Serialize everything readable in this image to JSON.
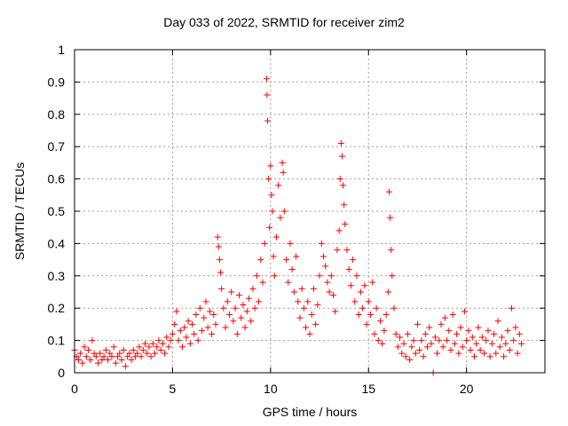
{
  "chart_data": {
    "type": "scatter",
    "title": "Day 033 of 2022, SRMTID for receiver zim2",
    "xlabel": "GPS time / hours",
    "ylabel": "SRMTID / TECUs",
    "xlim": [
      0,
      24
    ],
    "ylim": [
      0,
      1
    ],
    "xticks": [
      0,
      5,
      10,
      15,
      20
    ],
    "xtick_labels": [
      "0",
      "5",
      "10",
      "15",
      "20"
    ],
    "yticks": [
      0,
      0.1,
      0.2,
      0.3,
      0.4,
      0.5,
      0.6,
      0.7,
      0.8,
      0.9,
      1
    ],
    "ytick_labels": [
      "0",
      "0.1",
      "0.2",
      "0.3",
      "0.4",
      "0.5",
      "0.6",
      "0.7",
      "0.8",
      "0.9",
      "1"
    ],
    "grid": true,
    "marker": "+",
    "color": "#ff0000",
    "series": [
      {
        "name": "SRMTID",
        "points": [
          [
            0.0,
            0.07
          ],
          [
            0.1,
            0.05
          ],
          [
            0.2,
            0.04
          ],
          [
            0.3,
            0.06
          ],
          [
            0.4,
            0.03
          ],
          [
            0.5,
            0.08
          ],
          [
            0.6,
            0.05
          ],
          [
            0.7,
            0.07
          ],
          [
            0.8,
            0.04
          ],
          [
            0.9,
            0.1
          ],
          [
            1.0,
            0.06
          ],
          [
            1.1,
            0.05
          ],
          [
            1.2,
            0.03
          ],
          [
            1.3,
            0.06
          ],
          [
            1.4,
            0.04
          ],
          [
            1.5,
            0.05
          ],
          [
            1.6,
            0.07
          ],
          [
            1.7,
            0.04
          ],
          [
            1.8,
            0.06
          ],
          [
            1.9,
            0.05
          ],
          [
            2.0,
            0.08
          ],
          [
            2.1,
            0.03
          ],
          [
            2.2,
            0.05
          ],
          [
            2.3,
            0.06
          ],
          [
            2.4,
            0.04
          ],
          [
            2.5,
            0.07
          ],
          [
            2.6,
            0.02
          ],
          [
            2.7,
            0.05
          ],
          [
            2.8,
            0.06
          ],
          [
            2.9,
            0.04
          ],
          [
            3.0,
            0.07
          ],
          [
            3.1,
            0.05
          ],
          [
            3.2,
            0.06
          ],
          [
            3.3,
            0.08
          ],
          [
            3.4,
            0.05
          ],
          [
            3.5,
            0.07
          ],
          [
            3.6,
            0.09
          ],
          [
            3.7,
            0.06
          ],
          [
            3.8,
            0.08
          ],
          [
            3.9,
            0.05
          ],
          [
            4.0,
            0.09
          ],
          [
            4.1,
            0.06
          ],
          [
            4.2,
            0.08
          ],
          [
            4.3,
            0.1
          ],
          [
            4.4,
            0.07
          ],
          [
            4.5,
            0.09
          ],
          [
            4.6,
            0.06
          ],
          [
            4.7,
            0.11
          ],
          [
            4.8,
            0.08
          ],
          [
            4.9,
            0.1
          ],
          [
            5.0,
            0.12
          ],
          [
            5.1,
            0.15
          ],
          [
            5.2,
            0.19
          ],
          [
            5.3,
            0.1
          ],
          [
            5.4,
            0.13
          ],
          [
            5.5,
            0.08
          ],
          [
            5.6,
            0.14
          ],
          [
            5.7,
            0.11
          ],
          [
            5.8,
            0.16
          ],
          [
            5.9,
            0.09
          ],
          [
            6.0,
            0.15
          ],
          [
            6.1,
            0.12
          ],
          [
            6.2,
            0.18
          ],
          [
            6.3,
            0.1
          ],
          [
            6.4,
            0.2
          ],
          [
            6.5,
            0.13
          ],
          [
            6.6,
            0.17
          ],
          [
            6.7,
            0.22
          ],
          [
            6.8,
            0.14
          ],
          [
            6.9,
            0.19
          ],
          [
            7.0,
            0.12
          ],
          [
            7.1,
            0.18
          ],
          [
            7.2,
            0.15
          ],
          [
            7.3,
            0.42
          ],
          [
            7.35,
            0.39
          ],
          [
            7.4,
            0.35
          ],
          [
            7.45,
            0.31
          ],
          [
            7.5,
            0.26
          ],
          [
            7.6,
            0.2
          ],
          [
            7.7,
            0.14
          ],
          [
            7.8,
            0.22
          ],
          [
            7.9,
            0.18
          ],
          [
            8.0,
            0.25
          ],
          [
            8.1,
            0.16
          ],
          [
            8.2,
            0.2
          ],
          [
            8.3,
            0.12
          ],
          [
            8.4,
            0.24
          ],
          [
            8.5,
            0.17
          ],
          [
            8.6,
            0.21
          ],
          [
            8.7,
            0.14
          ],
          [
            8.8,
            0.19
          ],
          [
            8.9,
            0.23
          ],
          [
            9.0,
            0.16
          ],
          [
            9.1,
            0.26
          ],
          [
            9.2,
            0.2
          ],
          [
            9.3,
            0.3
          ],
          [
            9.4,
            0.22
          ],
          [
            9.5,
            0.35
          ],
          [
            9.6,
            0.28
          ],
          [
            9.7,
            0.4
          ],
          [
            9.8,
            0.91
          ],
          [
            9.82,
            0.86
          ],
          [
            9.85,
            0.78
          ],
          [
            9.9,
            0.6
          ],
          [
            9.95,
            0.45
          ],
          [
            10.0,
            0.64
          ],
          [
            10.05,
            0.55
          ],
          [
            10.1,
            0.5
          ],
          [
            10.15,
            0.36
          ],
          [
            10.2,
            0.3
          ],
          [
            10.3,
            0.42
          ],
          [
            10.4,
            0.58
          ],
          [
            10.5,
            0.48
          ],
          [
            10.6,
            0.65
          ],
          [
            10.65,
            0.62
          ],
          [
            10.7,
            0.5
          ],
          [
            10.8,
            0.35
          ],
          [
            10.9,
            0.28
          ],
          [
            11.0,
            0.4
          ],
          [
            11.1,
            0.32
          ],
          [
            11.2,
            0.25
          ],
          [
            11.3,
            0.36
          ],
          [
            11.4,
            0.22
          ],
          [
            11.5,
            0.17
          ],
          [
            11.6,
            0.26
          ],
          [
            11.7,
            0.2
          ],
          [
            11.8,
            0.14
          ],
          [
            11.9,
            0.22
          ],
          [
            12.0,
            0.12
          ],
          [
            12.1,
            0.18
          ],
          [
            12.2,
            0.26
          ],
          [
            12.3,
            0.15
          ],
          [
            12.4,
            0.21
          ],
          [
            12.5,
            0.3
          ],
          [
            12.6,
            0.4
          ],
          [
            12.7,
            0.36
          ],
          [
            12.8,
            0.33
          ],
          [
            12.9,
            0.28
          ],
          [
            13.0,
            0.25
          ],
          [
            13.1,
            0.3
          ],
          [
            13.2,
            0.24
          ],
          [
            13.3,
            0.19
          ],
          [
            13.4,
            0.38
          ],
          [
            13.5,
            0.44
          ],
          [
            13.55,
            0.6
          ],
          [
            13.6,
            0.71
          ],
          [
            13.65,
            0.67
          ],
          [
            13.7,
            0.58
          ],
          [
            13.75,
            0.52
          ],
          [
            13.8,
            0.46
          ],
          [
            13.9,
            0.38
          ],
          [
            14.0,
            0.32
          ],
          [
            14.1,
            0.27
          ],
          [
            14.2,
            0.35
          ],
          [
            14.3,
            0.22
          ],
          [
            14.4,
            0.3
          ],
          [
            14.5,
            0.18
          ],
          [
            14.6,
            0.25
          ],
          [
            14.7,
            0.2
          ],
          [
            14.8,
            0.27
          ],
          [
            14.9,
            0.15
          ],
          [
            15.0,
            0.22
          ],
          [
            15.1,
            0.18
          ],
          [
            15.2,
            0.28
          ],
          [
            15.3,
            0.12
          ],
          [
            15.4,
            0.2
          ],
          [
            15.5,
            0.1
          ],
          [
            15.6,
            0.16
          ],
          [
            15.7,
            0.09
          ],
          [
            15.8,
            0.13
          ],
          [
            15.9,
            0.18
          ],
          [
            16.0,
            0.25
          ],
          [
            16.05,
            0.56
          ],
          [
            16.1,
            0.48
          ],
          [
            16.15,
            0.38
          ],
          [
            16.2,
            0.3
          ],
          [
            16.3,
            0.2
          ],
          [
            16.4,
            0.12
          ],
          [
            16.5,
            0.08
          ],
          [
            16.6,
            0.11
          ],
          [
            16.7,
            0.06
          ],
          [
            16.8,
            0.09
          ],
          [
            16.9,
            0.05
          ],
          [
            17.0,
            0.12
          ],
          [
            17.1,
            0.04
          ],
          [
            17.2,
            0.08
          ],
          [
            17.3,
            0.1
          ],
          [
            17.4,
            0.06
          ],
          [
            17.5,
            0.15
          ],
          [
            17.6,
            0.07
          ],
          [
            17.7,
            0.1
          ],
          [
            17.8,
            0.05
          ],
          [
            17.9,
            0.12
          ],
          [
            18.0,
            0.08
          ],
          [
            18.1,
            0.14
          ],
          [
            18.2,
            0.09
          ],
          [
            18.3,
            0.0
          ],
          [
            18.4,
            0.11
          ],
          [
            18.5,
            0.06
          ],
          [
            18.6,
            0.1
          ],
          [
            18.7,
            0.15
          ],
          [
            18.8,
            0.08
          ],
          [
            18.9,
            0.17
          ],
          [
            19.0,
            0.1
          ],
          [
            19.1,
            0.13
          ],
          [
            19.2,
            0.07
          ],
          [
            19.3,
            0.18
          ],
          [
            19.4,
            0.09
          ],
          [
            19.5,
            0.12
          ],
          [
            19.6,
            0.06
          ],
          [
            19.7,
            0.14
          ],
          [
            19.8,
            0.08
          ],
          [
            19.9,
            0.19
          ],
          [
            20.0,
            0.1
          ],
          [
            20.1,
            0.13
          ],
          [
            20.2,
            0.07
          ],
          [
            20.3,
            0.11
          ],
          [
            20.4,
            0.05
          ],
          [
            20.5,
            0.09
          ],
          [
            20.6,
            0.14
          ],
          [
            20.7,
            0.07
          ],
          [
            20.8,
            0.11
          ],
          [
            20.9,
            0.06
          ],
          [
            21.0,
            0.1
          ],
          [
            21.1,
            0.13
          ],
          [
            21.2,
            0.05
          ],
          [
            21.3,
            0.09
          ],
          [
            21.4,
            0.12
          ],
          [
            21.5,
            0.06
          ],
          [
            21.6,
            0.16
          ],
          [
            21.7,
            0.08
          ],
          [
            21.8,
            0.11
          ],
          [
            21.9,
            0.05
          ],
          [
            22.0,
            0.09
          ],
          [
            22.1,
            0.13
          ],
          [
            22.2,
            0.07
          ],
          [
            22.3,
            0.2
          ],
          [
            22.4,
            0.1
          ],
          [
            22.5,
            0.14
          ],
          [
            22.6,
            0.06
          ],
          [
            22.7,
            0.12
          ],
          [
            22.8,
            0.09
          ]
        ]
      }
    ]
  }
}
